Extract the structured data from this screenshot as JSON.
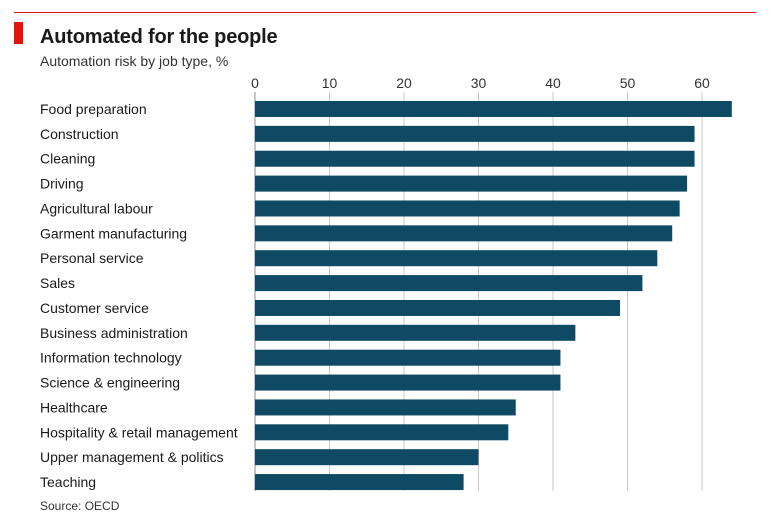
{
  "header": {
    "title": "Automated for the people",
    "subtitle": "Automation risk by job type, %"
  },
  "footer": {
    "source": "Source: OECD"
  },
  "colors": {
    "accent": "#e3120b",
    "bar": "#0e4a63",
    "grid": "#c8c8c8"
  },
  "chart_data": {
    "type": "bar",
    "orientation": "horizontal",
    "title": "Automated for the people",
    "subtitle": "Automation risk by job type, %",
    "categories": [
      "Food preparation",
      "Construction",
      "Cleaning",
      "Driving",
      "Agricultural labour",
      "Garment manufacturing",
      "Personal service",
      "Sales",
      "Customer service",
      "Business administration",
      "Information technology",
      "Science & engineering",
      "Healthcare",
      "Hospitality & retail management",
      "Upper management & politics",
      "Teaching"
    ],
    "values": [
      64,
      59,
      59,
      58,
      57,
      56,
      54,
      52,
      49,
      43,
      41,
      41,
      35,
      34,
      30,
      28
    ],
    "xticks": [
      0,
      10,
      20,
      30,
      40,
      50,
      60
    ],
    "xlim": [
      0,
      65
    ],
    "grid": true,
    "axis_position": "top"
  }
}
